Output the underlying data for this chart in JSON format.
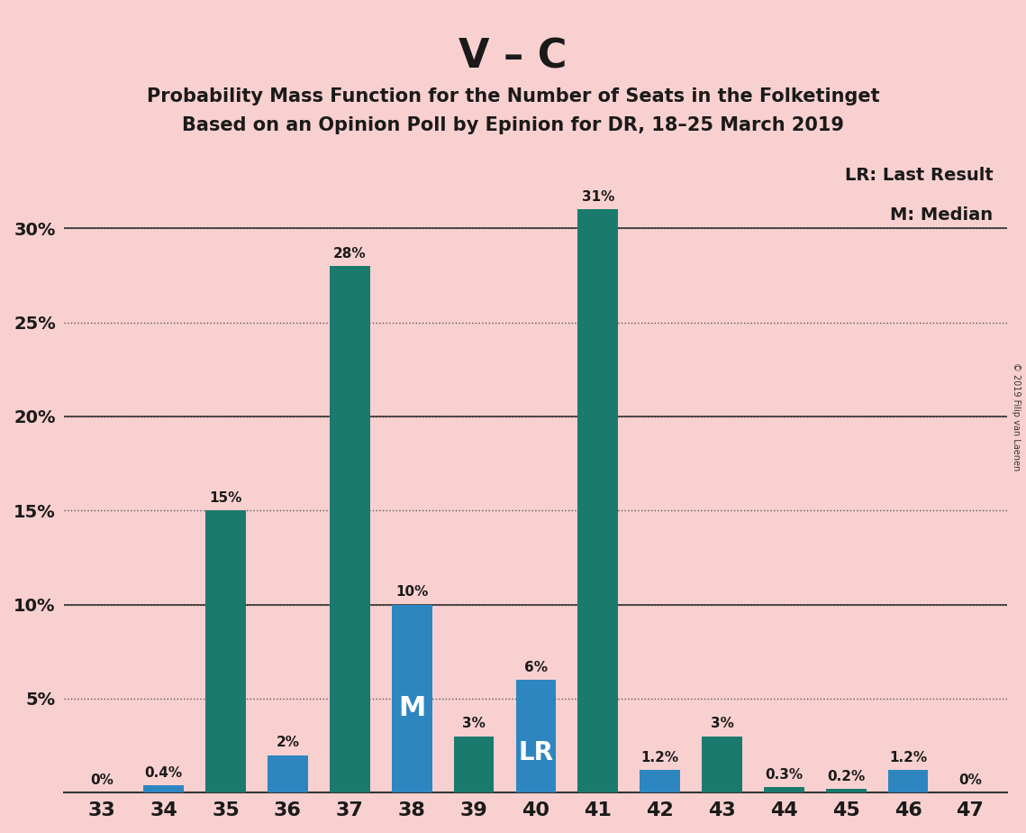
{
  "title_main": "V – C",
  "title_sub1": "Probability Mass Function for the Number of Seats in the Folketinget",
  "title_sub2": "Based on an Opinion Poll by Epinion for DR, 18–25 March 2019",
  "copyright": "© 2019 Filip van Laenen",
  "seats": [
    33,
    34,
    35,
    36,
    37,
    38,
    39,
    40,
    41,
    42,
    43,
    44,
    45,
    46,
    47
  ],
  "values": [
    0.0,
    0.4,
    15.0,
    2.0,
    28.0,
    10.0,
    3.0,
    6.0,
    31.0,
    1.2,
    3.0,
    0.3,
    0.2,
    1.2,
    0.0
  ],
  "labels": [
    "0%",
    "0.4%",
    "15%",
    "2%",
    "28%",
    "10%",
    "3%",
    "6%",
    "31%",
    "1.2%",
    "3%",
    "0.3%",
    "0.2%",
    "1.2%",
    "0%"
  ],
  "colors": [
    "#1a7a6e",
    "#2e86c1",
    "#1a7a6e",
    "#2e86c1",
    "#1a7a6e",
    "#2e86c1",
    "#1a7a6e",
    "#2e86c1",
    "#1a7a6e",
    "#2e86c1",
    "#1a7a6e",
    "#1a7a6e",
    "#1a7a6e",
    "#2e86c1",
    "#1a7a6e"
  ],
  "median_seat": 38,
  "lr_seat": 40,
  "background_color": "#f9d0d0",
  "ylim": [
    0,
    35
  ],
  "yticks": [
    0,
    5,
    10,
    15,
    20,
    25,
    30
  ],
  "ytick_labels": [
    "",
    "5%",
    "10%",
    "15%",
    "20%",
    "25%",
    "30%"
  ],
  "legend_lr": "LR: Last Result",
  "legend_m": "M: Median",
  "teal_color": "#1a7a6e",
  "blue_color": "#2e86c1"
}
